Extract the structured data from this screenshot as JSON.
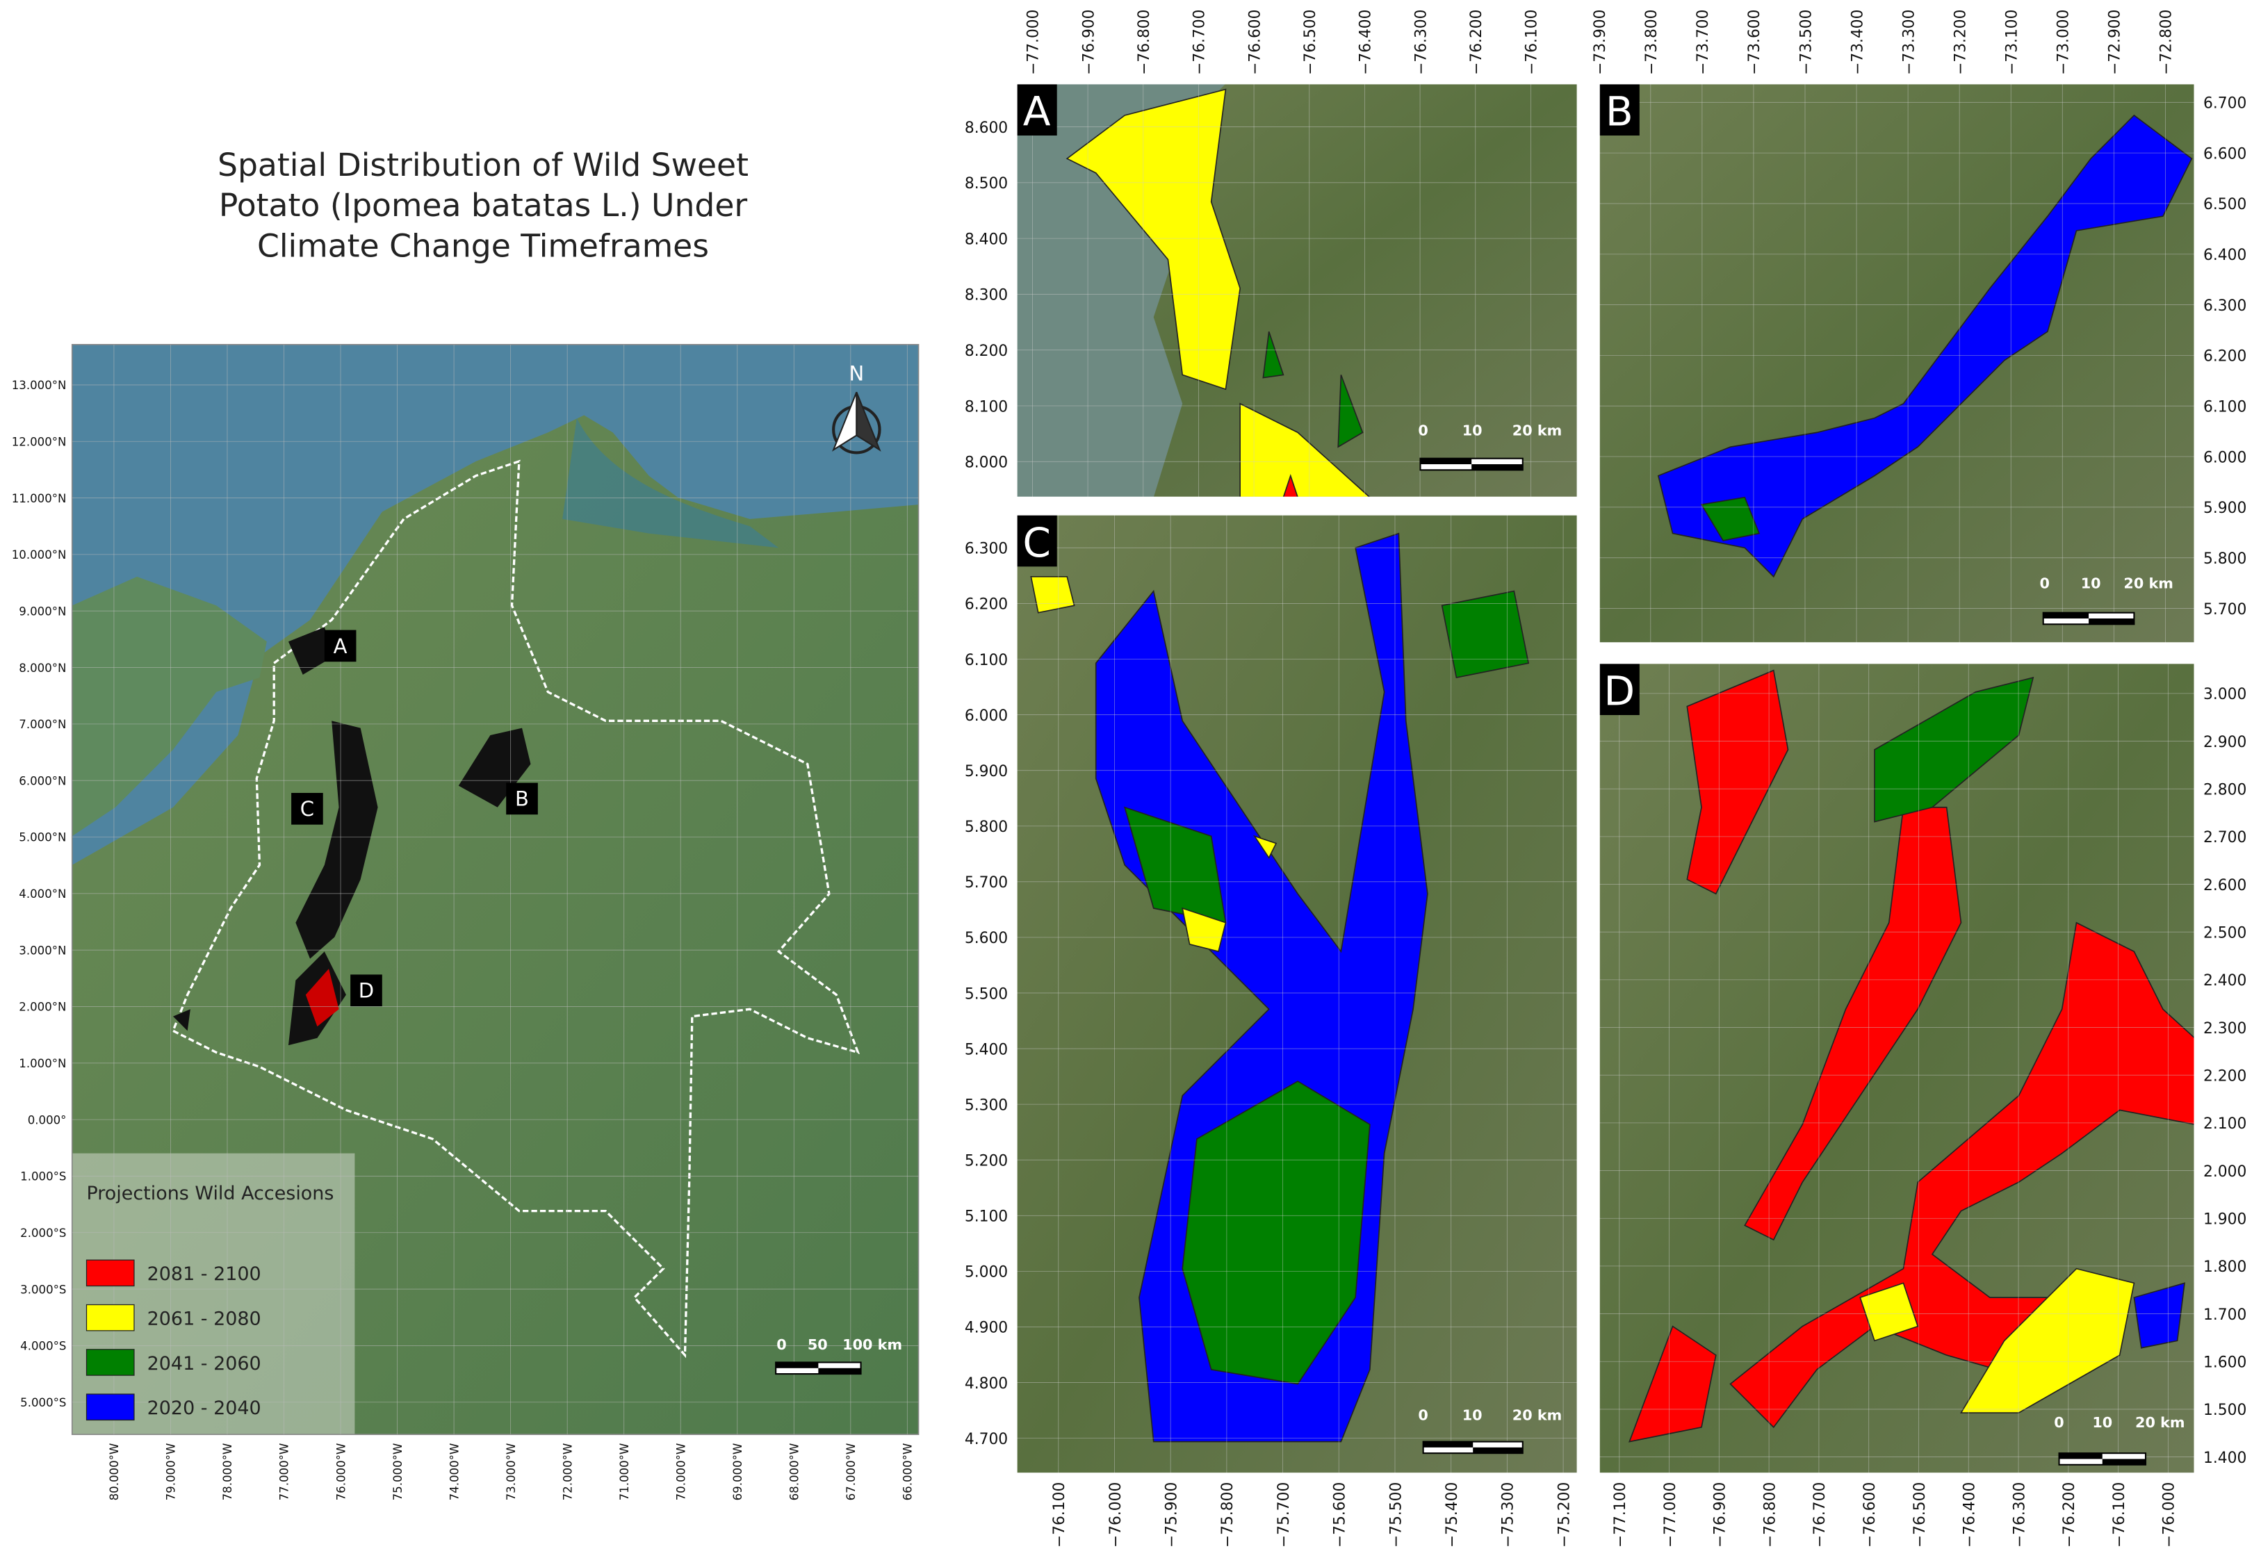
{
  "title": {
    "lines": [
      "Spatial Distribution of Wild Sweet",
      "Potato (Ipomea batatas L.) Under",
      "Climate Change Timeframes"
    ]
  },
  "main_map": {
    "lat_labels": [
      "13.000°N",
      "12.000°N",
      "11.000°N",
      "10.000°N",
      "9.000°N",
      "8.000°N",
      "7.000°N",
      "6.000°N",
      "5.000°N",
      "4.000°N",
      "3.000°N",
      "2.000°N",
      "1.000°N",
      "0.000°",
      "1.000°S",
      "2.000°S",
      "3.000°S",
      "4.000°S",
      "5.000°S"
    ],
    "lon_labels": [
      "80.000°W",
      "79.000°W",
      "78.000°W",
      "77.000°W",
      "76.000°W",
      "75.000°W",
      "74.000°W",
      "73.000°W",
      "72.000°W",
      "71.000°W",
      "70.000°W",
      "69.000°W",
      "68.000°W",
      "67.000°W",
      "66.000°W"
    ],
    "north": "N",
    "region_labels": [
      "A",
      "B",
      "C",
      "D"
    ],
    "scale_bar": [
      "0",
      "50",
      "100 km"
    ],
    "legend": {
      "title": "Projections Wild Accesions",
      "items": [
        {
          "label": "2081 - 2100",
          "color": "#ff0000"
        },
        {
          "label": "2061 - 2080",
          "color": "#ffff00"
        },
        {
          "label": "2041 - 2060",
          "color": "#008000"
        },
        {
          "label": "2020 - 2040",
          "color": "#0000ff"
        }
      ]
    }
  },
  "insets": [
    {
      "label": "A",
      "lon_ticks": [
        "−77.000",
        "−76.900",
        "−76.800",
        "−76.700",
        "−76.600",
        "−76.500",
        "−76.400",
        "−76.300",
        "−76.200",
        "−76.100"
      ],
      "lat_ticks": [
        "8.600",
        "8.500",
        "8.400",
        "8.300",
        "8.200",
        "8.100",
        "8.000"
      ],
      "scale_bar": [
        "0",
        "10",
        "20 km"
      ]
    },
    {
      "label": "B",
      "lon_ticks": [
        "−73.900",
        "−73.800",
        "−73.700",
        "−73.600",
        "−73.500",
        "−73.400",
        "−73.300",
        "−73.200",
        "−73.100",
        "−73.000",
        "−72.900",
        "−72.800"
      ],
      "lat_ticks": [
        "6.700",
        "6.600",
        "6.500",
        "6.400",
        "6.300",
        "6.200",
        "6.100",
        "6.000",
        "5.900",
        "5.800",
        "5.700"
      ],
      "scale_bar": [
        "0",
        "10",
        "20 km"
      ]
    },
    {
      "label": "C",
      "lon_ticks": [
        "−76.100",
        "−76.000",
        "−75.900",
        "−75.800",
        "−75.700",
        "−75.600",
        "−75.500",
        "−75.400",
        "−75.300",
        "−75.200"
      ],
      "lat_ticks": [
        "6.300",
        "6.200",
        "6.100",
        "6.000",
        "5.900",
        "5.800",
        "5.700",
        "5.600",
        "5.500",
        "5.400",
        "5.300",
        "5.200",
        "5.100",
        "5.000",
        "4.900",
        "4.800",
        "4.700"
      ],
      "scale_bar": [
        "0",
        "10",
        "20 km"
      ]
    },
    {
      "label": "D",
      "lon_ticks": [
        "−77.100",
        "−77.000",
        "−76.900",
        "−76.800",
        "−76.700",
        "−76.600",
        "−76.500",
        "−76.400",
        "−76.300",
        "−76.200",
        "−76.100",
        "−76.000"
      ],
      "lat_ticks": [
        "3.000",
        "2.900",
        "2.800",
        "2.700",
        "2.600",
        "2.500",
        "2.400",
        "2.300",
        "2.200",
        "2.100",
        "2.000",
        "1.900",
        "1.800",
        "1.700",
        "1.600",
        "1.500",
        "1.400"
      ],
      "scale_bar": [
        "0",
        "10",
        "20 km"
      ]
    }
  ]
}
